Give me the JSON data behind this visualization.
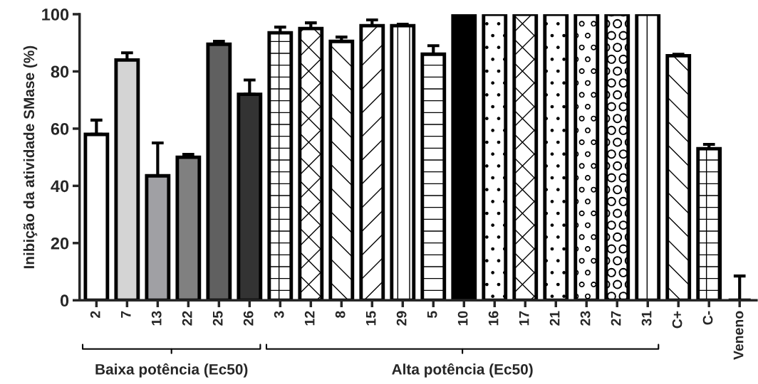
{
  "chart_data": {
    "type": "bar",
    "ylabel": "Inibição da atividade SMase (%)",
    "categories": [
      "2",
      "7",
      "13",
      "22",
      "25",
      "26",
      "3",
      "12",
      "8",
      "15",
      "29",
      "5",
      "10",
      "16",
      "17",
      "21",
      "23",
      "27",
      "31",
      "C+",
      "C-",
      "Veneno"
    ],
    "values": [
      58,
      84,
      43.5,
      50,
      89.5,
      72,
      93.5,
      95,
      90.5,
      96,
      96,
      86,
      100,
      100,
      100,
      100,
      100,
      100,
      100,
      85.5,
      53,
      0
    ],
    "errors": [
      [
        58,
        63
      ],
      [
        84,
        86.5
      ],
      [
        43.5,
        55
      ],
      [
        50,
        51
      ],
      [
        89.5,
        90.5
      ],
      [
        72,
        77
      ],
      [
        93.5,
        95.5
      ],
      [
        95,
        97
      ],
      [
        90.5,
        92
      ],
      [
        96,
        98
      ],
      [
        96,
        96.5
      ],
      [
        86,
        89
      ],
      null,
      null,
      null,
      null,
      null,
      null,
      null,
      [
        85.5,
        86
      ],
      [
        53,
        54.5
      ],
      [
        0,
        8.5
      ]
    ],
    "colors": [
      "#ffffff",
      "#d4d4d4",
      "#a0a0a4",
      "#808080",
      "#606060",
      "#333333",
      "#ffffff",
      "#ffffff",
      "#ffffff",
      "#ffffff",
      "#ffffff",
      "#ffffff",
      "#000000",
      "#ffffff",
      "#ffffff",
      "#ffffff",
      "#ffffff",
      "#ffffff",
      "#ffffff",
      "#ffffff",
      "#ffffff",
      "#000000"
    ],
    "ylim": [
      0,
      100
    ],
    "yticks": [
      0,
      20,
      40,
      60,
      80,
      100
    ],
    "annotations": [
      "Baixa potência (Ec50)",
      "Alta potência (Ec50)"
    ],
    "grid": false,
    "legend": false
  }
}
